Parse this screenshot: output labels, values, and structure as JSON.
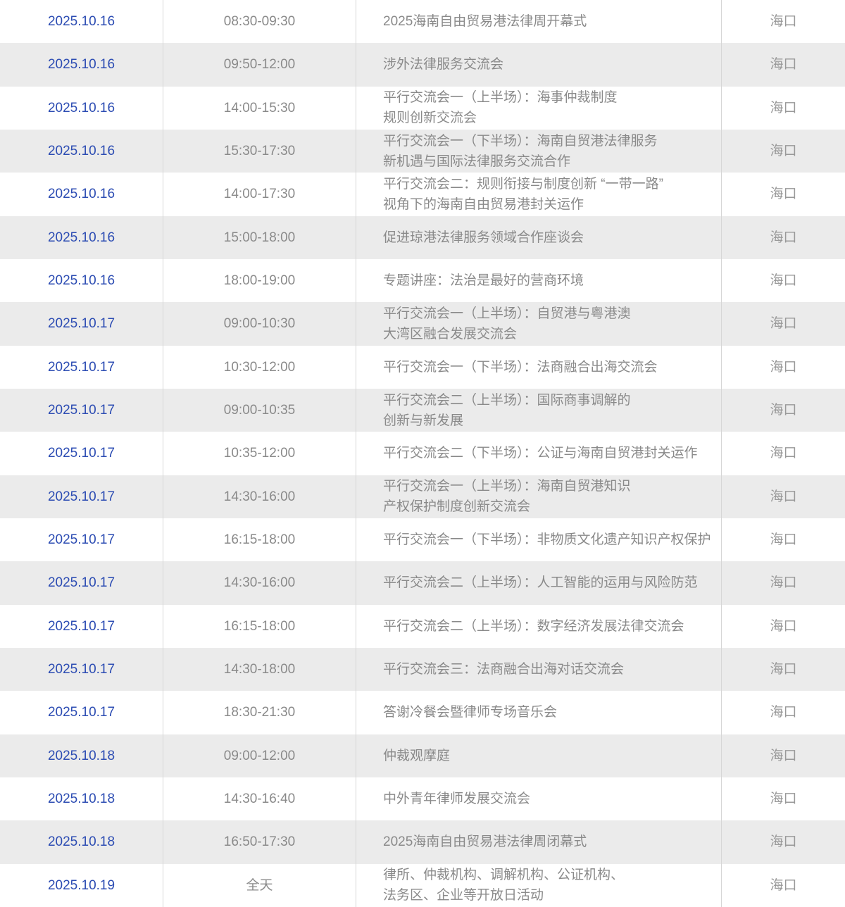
{
  "colors": {
    "date_blue": "#2d4db3",
    "text_gray": "#8a8a8a",
    "location_gray": "#999999",
    "row_bg": "#ffffff",
    "row_alt_bg": "#ebebeb",
    "divider": "#d6d6d6"
  },
  "chart_data": {
    "type": "table",
    "columns": [
      "date",
      "time",
      "event",
      "location"
    ]
  },
  "rows": [
    {
      "date": "2025.10.16",
      "time": "08:30-09:30",
      "event_lines": [
        "2025海南自由贸易港法律周开幕式"
      ],
      "location": "海口"
    },
    {
      "date": "2025.10.16",
      "time": "09:50-12:00",
      "event_lines": [
        "涉外法律服务交流会"
      ],
      "location": "海口"
    },
    {
      "date": "2025.10.16",
      "time": "14:00-15:30",
      "event_lines": [
        "平行交流会一（上半场）：海事仲裁制度",
        "规则创新交流会"
      ],
      "location": "海口"
    },
    {
      "date": "2025.10.16",
      "time": "15:30-17:30",
      "event_lines": [
        "平行交流会一（下半场）：海南自贸港法律服务",
        "新机遇与国际法律服务交流合作"
      ],
      "location": "海口"
    },
    {
      "date": "2025.10.16",
      "time": "14:00-17:30",
      "event_lines": [
        "平行交流会二：规则衔接与制度创新 “一带一路”",
        "视角下的海南自由贸易港封关运作"
      ],
      "location": "海口"
    },
    {
      "date": "2025.10.16",
      "time": "15:00-18:00",
      "event_lines": [
        "促进琼港法律服务领域合作座谈会"
      ],
      "location": "海口"
    },
    {
      "date": "2025.10.16",
      "time": "18:00-19:00",
      "event_lines": [
        "专题讲座：法治是最好的营商环境"
      ],
      "location": "海口"
    },
    {
      "date": "2025.10.17",
      "time": "09:00-10:30",
      "event_lines": [
        "平行交流会一（上半场）：自贸港与粤港澳",
        "大湾区融合发展交流会"
      ],
      "location": "海口"
    },
    {
      "date": "2025.10.17",
      "time": "10:30-12:00",
      "event_lines": [
        "平行交流会一（下半场）：法商融合出海交流会"
      ],
      "location": "海口"
    },
    {
      "date": "2025.10.17",
      "time": "09:00-10:35",
      "event_lines": [
        "平行交流会二（上半场）：国际商事调解的",
        "创新与新发展"
      ],
      "location": "海口"
    },
    {
      "date": "2025.10.17",
      "time": "10:35-12:00",
      "event_lines": [
        "平行交流会二（下半场）：公证与海南自贸港封关运作"
      ],
      "location": "海口"
    },
    {
      "date": "2025.10.17",
      "time": "14:30-16:00",
      "event_lines": [
        "平行交流会一（上半场）：海南自贸港知识",
        "产权保护制度创新交流会"
      ],
      "location": "海口"
    },
    {
      "date": "2025.10.17",
      "time": "16:15-18:00",
      "event_lines": [
        "平行交流会一（下半场）：非物质文化遗产知识产权保护"
      ],
      "location": "海口"
    },
    {
      "date": "2025.10.17",
      "time": "14:30-16:00",
      "event_lines": [
        "平行交流会二（上半场）：人工智能的运用与风险防范"
      ],
      "location": "海口"
    },
    {
      "date": "2025.10.17",
      "time": "16:15-18:00",
      "event_lines": [
        "平行交流会二（上半场）：数字经济发展法律交流会"
      ],
      "location": "海口"
    },
    {
      "date": "2025.10.17",
      "time": "14:30-18:00",
      "event_lines": [
        "平行交流会三：法商融合出海对话交流会"
      ],
      "location": "海口"
    },
    {
      "date": "2025.10.17",
      "time": "18:30-21:30",
      "event_lines": [
        "答谢冷餐会暨律师专场音乐会"
      ],
      "location": "海口"
    },
    {
      "date": "2025.10.18",
      "time": "09:00-12:00",
      "event_lines": [
        "仲裁观摩庭"
      ],
      "location": "海口"
    },
    {
      "date": "2025.10.18",
      "time": "14:30-16:40",
      "event_lines": [
        "中外青年律师发展交流会"
      ],
      "location": "海口"
    },
    {
      "date": "2025.10.18",
      "time": "16:50-17:30",
      "event_lines": [
        "2025海南自由贸易港法律周闭幕式"
      ],
      "location": "海口"
    },
    {
      "date": "2025.10.19",
      "time": "全天",
      "event_lines": [
        "律所、仲裁机构、调解机构、公证机构、",
        "法务区、企业等开放日活动"
      ],
      "location": "海口"
    }
  ]
}
